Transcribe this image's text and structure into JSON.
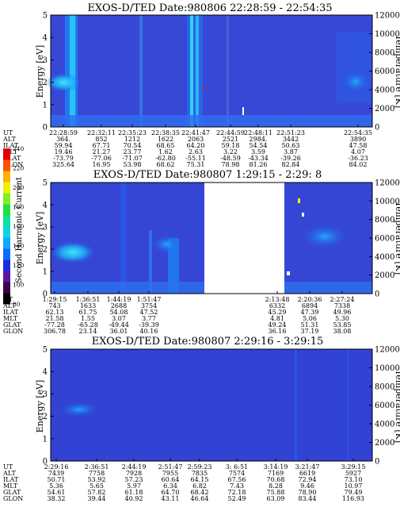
{
  "chart_data": [
    {
      "type": "heatmap",
      "title": "EXOS-D/TED  Date:980806  22:28:59 - 22:54:35",
      "ylabel": "Energy [eV]",
      "ylabel_right": "Temperature [K]",
      "ylim": [
        0,
        5
      ],
      "yticks": [
        "0",
        "1",
        "2",
        "3",
        "4",
        "5"
      ],
      "ylim_right": [
        0,
        12000
      ],
      "yticks_right": [
        "0",
        "2000",
        "4000",
        "6000",
        "8000",
        "10000",
        "12000"
      ],
      "row_labels": [
        "UT",
        "ALT",
        "ILAT",
        "MLT",
        "GLAT",
        "GLON"
      ],
      "columns": [
        [
          "22:28:59",
          "364.",
          "59.94",
          "19.46",
          "-73.79",
          "325.64"
        ],
        [
          "22:32:11",
          "852",
          "67.71",
          "21.27",
          "-77.06",
          "16.95"
        ],
        [
          "22:35:23",
          "1212",
          "70.54",
          "23.77",
          "-71.07",
          "53.98"
        ],
        [
          "22:38:35",
          "1622",
          "68.65",
          "1.62",
          "-62.80",
          "68.62"
        ],
        [
          "22:41:47",
          "2063",
          "64.20",
          "2.63",
          "-55.11",
          "75.31"
        ],
        [
          "22:44:59",
          "2521",
          "59.18",
          "3.22",
          "-48.59",
          "78.98"
        ],
        [
          "22:48:11",
          "2984.",
          "54.54",
          "3.59",
          "-43.34",
          "81.26"
        ],
        [
          "22:51:23",
          "3442",
          "50.63",
          "3.87",
          "-39.26",
          "82.84"
        ],
        [
          "22:54:35",
          "3890",
          "47.58",
          "4.07",
          "-36.23",
          "84.02"
        ]
      ]
    },
    {
      "type": "heatmap",
      "title": "EXOS-D/TED   Date:980807   1:29:15 - 2:29: 8",
      "ylabel": "Energy [eV]",
      "ylabel_right": "Temperature [K]",
      "ylim": [
        0,
        5
      ],
      "yticks": [
        "0",
        "1",
        "2",
        "3",
        "4",
        "5"
      ],
      "ylim_right": [
        0,
        12000
      ],
      "yticks_right": [
        "0",
        "2000",
        "4000",
        "6000",
        "8000",
        "10000",
        "12000"
      ],
      "data_gap": [
        "1:51:47",
        "2:13:48"
      ],
      "row_labels": [
        "UT",
        "ALT",
        "ILAT",
        "MLT",
        "GLAT",
        "GLON"
      ],
      "columns": [
        [
          "1:29:15",
          "743",
          "62.13",
          "21.58",
          "-77.28",
          "306.78"
        ],
        [
          "1:36:51",
          "1633",
          "61.75",
          "1.55",
          "-65.28",
          "23.14"
        ],
        [
          "1:44:19",
          "2688",
          "54.08",
          "3.07",
          "-49.44",
          "36.01"
        ],
        [
          "1:51:47",
          "3754",
          "47.52",
          "3.77",
          "-39.39",
          "40.16"
        ],
        [
          "2:13:48",
          "6332",
          "45.29",
          "4.81",
          "49.24",
          "36.16"
        ],
        [
          "2:20:36",
          "6894",
          "47.39",
          "5.06",
          "51.31",
          "37.19"
        ],
        [
          "2:27:24",
          "7338",
          "49.96",
          "5.30",
          "53.85",
          "38.08"
        ]
      ]
    },
    {
      "type": "heatmap",
      "title": "EXOS-D/TED   Date:980807   2:29:16 - 3:29:15",
      "ylabel": "Energy [eV]",
      "ylabel_right": "Temperature [K]",
      "ylim": [
        0,
        5
      ],
      "yticks": [
        "0",
        "1",
        "2",
        "3",
        "4",
        "5"
      ],
      "ylim_right": [
        0,
        12000
      ],
      "yticks_right": [
        "0",
        "2000",
        "4000",
        "6000",
        "8000",
        "10000",
        "12000"
      ],
      "row_labels": [
        "UT",
        "ALT",
        "ILAT",
        "MLT",
        "GLAT",
        "GLON"
      ],
      "columns": [
        [
          "2:29:16",
          "7439",
          "50.71",
          "5.36",
          "54.61",
          "38.32"
        ],
        [
          "2:36:51",
          "7758",
          "53.92",
          "5.65",
          "57.82",
          "39.44"
        ],
        [
          "2:44:19",
          "7928",
          "57.23",
          "5.97",
          "61.18",
          "40.92"
        ],
        [
          "2:51:47",
          "7955",
          "60.64",
          "6.34",
          "64.70",
          "43.11"
        ],
        [
          "2:59:23",
          "7835",
          "64.15",
          "6.82",
          "68.42",
          "46.64"
        ],
        [
          "3: 6:51",
          "7574",
          "67.56",
          "7.43",
          "72.18",
          "52.49"
        ],
        [
          "3:14:19",
          "7169",
          "70.68",
          "8.28",
          "75.88",
          "63.09"
        ],
        [
          "3:21:47",
          "6619",
          "72.94",
          "9.46",
          "78.90",
          "83.44"
        ],
        [
          "3:29:15",
          "5927",
          "73.10",
          "10.97",
          "79.49",
          "116.93"
        ]
      ]
    }
  ],
  "colorbar": {
    "label": "Second Harmonic Current",
    "ticks": [
      "80",
      "100",
      "120",
      "140",
      "160",
      "180",
      "200",
      "220",
      "240"
    ],
    "colors": [
      "#000000",
      "#3a0050",
      "#5a14a0",
      "#1a2ee0",
      "#0a6cff",
      "#12a8ff",
      "#10d4e0",
      "#10e0a0",
      "#20e040",
      "#80f020",
      "#f0f000",
      "#ffb000",
      "#ff5000",
      "#e00000"
    ]
  }
}
